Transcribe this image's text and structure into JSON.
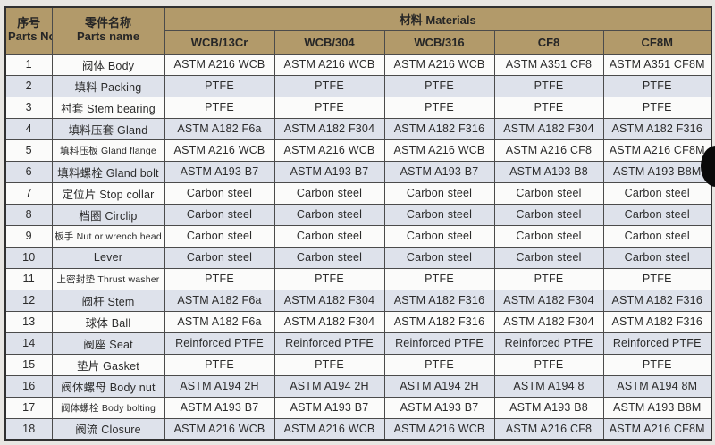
{
  "table": {
    "header": {
      "parts_no_cn": "序号",
      "parts_no_en": "Parts No.",
      "parts_name_cn": "零件名称",
      "parts_name_en": "Parts name",
      "materials_group": "材料 Materials",
      "material_columns": [
        "WCB/13Cr",
        "WCB/304",
        "WCB/316",
        "CF8",
        "CF8M"
      ]
    },
    "rows": [
      {
        "no": "1",
        "name": "阀体 Body",
        "materials": [
          "ASTM A216 WCB",
          "ASTM A216 WCB",
          "ASTM A216 WCB",
          "ASTM A351 CF8",
          "ASTM A351 CF8M"
        ]
      },
      {
        "no": "2",
        "name": "填料 Packing",
        "materials": [
          "PTFE",
          "PTFE",
          "PTFE",
          "PTFE",
          "PTFE"
        ]
      },
      {
        "no": "3",
        "name": "衬套 Stem bearing",
        "materials": [
          "PTFE",
          "PTFE",
          "PTFE",
          "PTFE",
          "PTFE"
        ]
      },
      {
        "no": "4",
        "name": "填料压套 Gland",
        "materials": [
          "ASTM A182 F6a",
          "ASTM A182 F304",
          "ASTM A182 F316",
          "ASTM A182 F304",
          "ASTM A182 F316"
        ]
      },
      {
        "no": "5",
        "name": "填料压板 Gland flange",
        "materials": [
          "ASTM A216 WCB",
          "ASTM A216 WCB",
          "ASTM A216 WCB",
          "ASTM A216 CF8",
          "ASTM A216 CF8M"
        ]
      },
      {
        "no": "6",
        "name": "填料螺栓 Gland bolt",
        "materials": [
          "ASTM A193 B7",
          "ASTM A193 B7",
          "ASTM A193 B7",
          "ASTM A193 B8",
          "ASTM A193 B8M"
        ]
      },
      {
        "no": "7",
        "name": "定位片 Stop collar",
        "materials": [
          "Carbon steel",
          "Carbon steel",
          "Carbon steel",
          "Carbon steel",
          "Carbon steel"
        ]
      },
      {
        "no": "8",
        "name": "档圈 Circlip",
        "materials": [
          "Carbon steel",
          "Carbon steel",
          "Carbon steel",
          "Carbon steel",
          "Carbon steel"
        ]
      },
      {
        "no": "9",
        "name": "板手 Nut or wrench head",
        "materials": [
          "Carbon steel",
          "Carbon steel",
          "Carbon steel",
          "Carbon steel",
          "Carbon steel"
        ]
      },
      {
        "no": "10",
        "name": "Lever",
        "materials": [
          "Carbon steel",
          "Carbon steel",
          "Carbon steel",
          "Carbon steel",
          "Carbon steel"
        ]
      },
      {
        "no": "11",
        "name": "上密封垫 Thrust washer",
        "materials": [
          "PTFE",
          "PTFE",
          "PTFE",
          "PTFE",
          "PTFE"
        ]
      },
      {
        "no": "12",
        "name": "阀杆 Stem",
        "materials": [
          "ASTM A182 F6a",
          "ASTM A182 F304",
          "ASTM A182 F316",
          "ASTM A182 F304",
          "ASTM A182 F316"
        ]
      },
      {
        "no": "13",
        "name": "球体 Ball",
        "materials": [
          "ASTM A182 F6a",
          "ASTM A182 F304",
          "ASTM A182 F316",
          "ASTM A182 F304",
          "ASTM A182 F316"
        ]
      },
      {
        "no": "14",
        "name": "阀座 Seat",
        "materials": [
          "Reinforced PTFE",
          "Reinforced PTFE",
          "Reinforced PTFE",
          "Reinforced PTFE",
          "Reinforced PTFE"
        ]
      },
      {
        "no": "15",
        "name": "垫片 Gasket",
        "materials": [
          "PTFE",
          "PTFE",
          "PTFE",
          "PTFE",
          "PTFE"
        ]
      },
      {
        "no": "16",
        "name": "阀体螺母 Body nut",
        "materials": [
          "ASTM A194 2H",
          "ASTM A194 2H",
          "ASTM A194 2H",
          "ASTM A194 8",
          "ASTM A194 8M"
        ]
      },
      {
        "no": "17",
        "name": "阀体螺栓 Body bolting",
        "materials": [
          "ASTM A193 B7",
          "ASTM A193 B7",
          "ASTM A193 B7",
          "ASTM A193 B8",
          "ASTM A193 B8M"
        ]
      },
      {
        "no": "18",
        "name": "阀流 Closure",
        "materials": [
          "ASTM A216 WCB",
          "ASTM A216 WCB",
          "ASTM A216 WCB",
          "ASTM A216 CF8",
          "ASTM A216 CF8M"
        ]
      }
    ]
  },
  "colors": {
    "header_bg": "#b29a6a",
    "alt_row_bg": "#dee2eb",
    "row_bg": "#fbfbfa",
    "grid": "#4b4b4b",
    "text": "#2b2b2b",
    "page_bg": "#e8e6e2"
  }
}
